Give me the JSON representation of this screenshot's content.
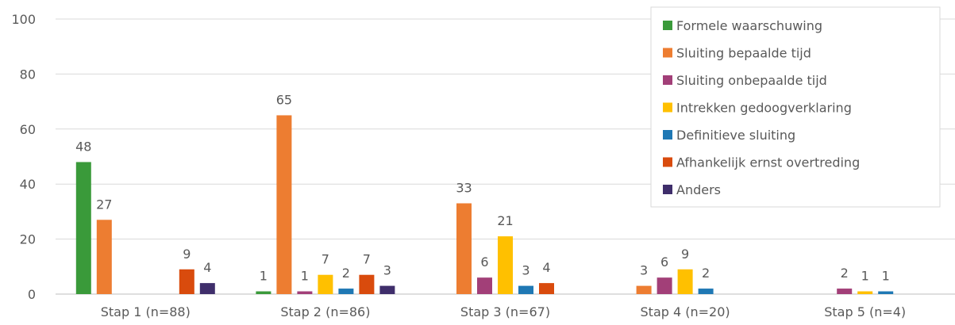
{
  "chart_data": {
    "type": "bar",
    "categories": [
      "Stap 1 (n=88)",
      "Stap 2 (n=86)",
      "Stap 3 (n=67)",
      "Stap 4 (n=20)",
      "Stap 5 (n=4)"
    ],
    "series": [
      {
        "name": "Formele waarschuwing",
        "color": "#3a9a3a",
        "values": [
          48,
          1,
          0,
          0,
          0
        ]
      },
      {
        "name": "Sluiting bepaalde tijd",
        "color": "#ed7d31",
        "values": [
          27,
          65,
          33,
          3,
          0
        ]
      },
      {
        "name": "Sluiting onbepaalde tijd",
        "color": "#a23f78",
        "values": [
          0,
          1,
          6,
          6,
          2
        ]
      },
      {
        "name": "Intrekken gedoogverklaring",
        "color": "#ffc000",
        "values": [
          0,
          7,
          21,
          9,
          1
        ]
      },
      {
        "name": "Definitieve sluiting",
        "color": "#1f78b4",
        "values": [
          0,
          2,
          3,
          2,
          1
        ]
      },
      {
        "name": "Afhankelijk ernst overtreding",
        "color": "#d94b0d",
        "values": [
          9,
          7,
          4,
          0,
          0
        ]
      },
      {
        "name": "Anders",
        "color": "#3f2e6b",
        "values": [
          4,
          3,
          0,
          0,
          0
        ]
      }
    ],
    "title": "",
    "xlabel": "",
    "ylabel": "",
    "ylim": [
      0,
      100
    ],
    "yticks": [
      "0",
      "20",
      "40",
      "60",
      "80",
      "100"
    ],
    "grid": true,
    "legend_position": "top-right"
  }
}
